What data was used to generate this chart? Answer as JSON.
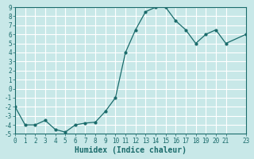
{
  "xlabel": "Humidex (Indice chaleur)",
  "x": [
    0,
    1,
    2,
    3,
    4,
    5,
    6,
    7,
    8,
    9,
    10,
    11,
    12,
    13,
    14,
    15,
    16,
    17,
    18,
    19,
    20,
    21,
    23
  ],
  "y": [
    -2,
    -4,
    -4,
    -3.5,
    -4.5,
    -4.8,
    -4,
    -3.8,
    -3.7,
    -2.5,
    -1,
    4,
    6.5,
    8.5,
    9,
    9,
    7.5,
    6.5,
    5,
    6,
    6.5,
    5,
    6
  ],
  "ylim": [
    -5,
    9
  ],
  "xlim": [
    0,
    23
  ],
  "yticks": [
    -5,
    -4,
    -3,
    -2,
    -1,
    0,
    1,
    2,
    3,
    4,
    5,
    6,
    7,
    8,
    9
  ],
  "xticks": [
    0,
    1,
    2,
    3,
    4,
    5,
    6,
    7,
    8,
    9,
    10,
    11,
    12,
    13,
    14,
    15,
    16,
    17,
    18,
    19,
    20,
    21,
    23
  ],
  "xtick_labels": [
    "0",
    "1",
    "2",
    "3",
    "4",
    "5",
    "6",
    "7",
    "8",
    "9",
    "10",
    "11",
    "12",
    "13",
    "14",
    "15",
    "16",
    "17",
    "18",
    "19",
    "20",
    "21",
    "23"
  ],
  "line_color": "#1a6b6b",
  "marker": "o",
  "marker_size": 2,
  "bg_color": "#c8e8e8",
  "grid_color": "#b0d4d4",
  "axes_color": "#1a6b6b",
  "font_color": "#1a6b6b",
  "tick_fontsize": 5.5,
  "xlabel_fontsize": 7
}
